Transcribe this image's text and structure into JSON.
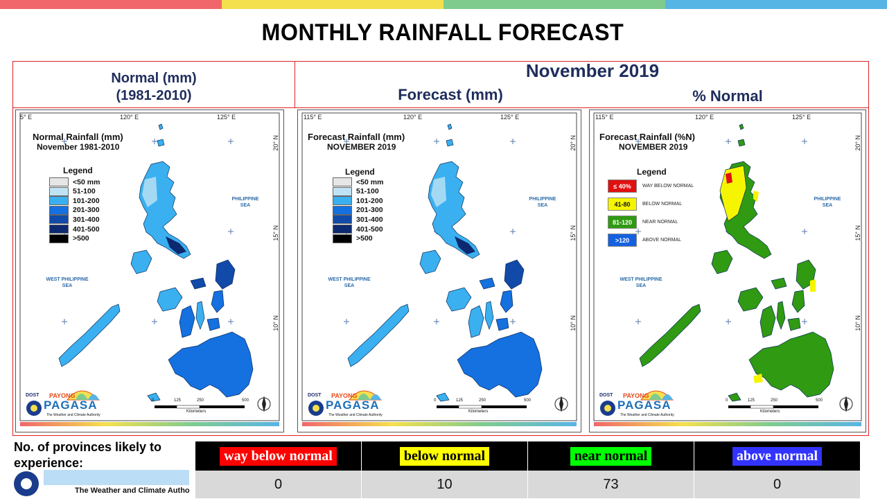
{
  "title": "MONTHLY RAINFALL FORECAST",
  "topbar_colors": [
    "#f0666b",
    "#f4e04d",
    "#7fcb8e",
    "#56b5e5"
  ],
  "headers": {
    "normal_line1": "Normal (mm)",
    "normal_line2": "(1981-2010)",
    "month": "November 2019",
    "forecast": "Forecast (mm)",
    "percent_normal": "% Normal"
  },
  "panels": [
    {
      "title": "Normal Rainfall (mm)",
      "subtitle": "November 1981-2010",
      "lon_labels": [
        "5° E",
        "120° E",
        "125° E"
      ],
      "lat_labels": [
        "20° N",
        "15° N",
        "10° N"
      ],
      "sea_east": [
        "PHILIPPINE",
        "SEA"
      ],
      "sea_west": [
        "WEST PHILIPPINE",
        "SEA"
      ],
      "legend_title": "Legend",
      "legend": [
        {
          "label": "<50 mm",
          "color": "#e6e6e6"
        },
        {
          "label": "51-100",
          "color": "#bfe3f5"
        },
        {
          "label": "101-200",
          "color": "#3ab0f0"
        },
        {
          "label": "201-300",
          "color": "#1570e0"
        },
        {
          "label": "301-400",
          "color": "#114aa8"
        },
        {
          "label": "401-500",
          "color": "#0d2a70"
        },
        {
          "label": ">500",
          "color": "#000000"
        }
      ]
    },
    {
      "title": "Forecast Rainfall (mm)",
      "subtitle": "NOVEMBER 2019",
      "lon_labels": [
        "115° E",
        "120° E",
        "125° E"
      ],
      "lat_labels": [
        "20° N",
        "15° N",
        "10° N"
      ],
      "sea_east": [
        "PHILIPPINE",
        "SEA"
      ],
      "sea_west": [
        "WEST PHILIPPINE",
        "SEA"
      ],
      "legend_title": "Legend",
      "legend": [
        {
          "label": "<50 mm",
          "color": "#e6e6e6"
        },
        {
          "label": "51-100",
          "color": "#bfe3f5"
        },
        {
          "label": "101-200",
          "color": "#3ab0f0"
        },
        {
          "label": "201-300",
          "color": "#1570e0"
        },
        {
          "label": "301-400",
          "color": "#114aa8"
        },
        {
          "label": "401-500",
          "color": "#0d2a70"
        },
        {
          "label": ">500",
          "color": "#000000"
        }
      ]
    },
    {
      "title": "Forecast Rainfall (%N)",
      "subtitle": "NOVEMBER 2019",
      "lon_labels": [
        "115° E",
        "120° E",
        "125° E"
      ],
      "lat_labels": [
        "20° N",
        "15° N",
        "10° N"
      ],
      "sea_east": [
        "PHILIPPINE",
        "SEA"
      ],
      "sea_west": [
        "WEST PHILIPPINE",
        "SEA"
      ],
      "legend_title": "Legend",
      "legend": [
        {
          "label": "≤ 40%",
          "desc": "WAY BELOW NORMAL",
          "color": "#e01010",
          "text_color": "#ffffff"
        },
        {
          "label": "41-80",
          "desc": "BELOW NORMAL",
          "color": "#f5f500",
          "text_color": "#111111"
        },
        {
          "label": "81-120",
          "desc": "NEAR NORMAL",
          "color": "#2f9a12",
          "text_color": "#ffffff"
        },
        {
          "label": ">120",
          "desc": "ABOVE NORMAL",
          "color": "#1560e0",
          "text_color": "#ffffff"
        }
      ]
    }
  ],
  "logo": {
    "dost": "DOST",
    "payong": "PAYONG",
    "pagasa": "PAGASA",
    "authority": "The Weather and Climate Authority"
  },
  "scale": {
    "ticks": [
      "0",
      "125",
      "250",
      "500"
    ],
    "unit": "Kilometers"
  },
  "provinces": {
    "label_line1": "No. of provinces likely  to",
    "label_line2": "experience:",
    "categories": [
      {
        "label": "way below normal",
        "bg": "#ff0000",
        "fg": "#ffffff",
        "count": "0"
      },
      {
        "label": "below normal",
        "bg": "#ffff00",
        "fg": "#000000",
        "count": "10"
      },
      {
        "label": "near normal",
        "bg": "#00ff00",
        "fg": "#000000",
        "count": "73"
      },
      {
        "label": "above normal",
        "bg": "#3333ff",
        "fg": "#ffffff",
        "count": "0"
      }
    ]
  },
  "bg_logo_text": "The Weather and Climate Autho"
}
